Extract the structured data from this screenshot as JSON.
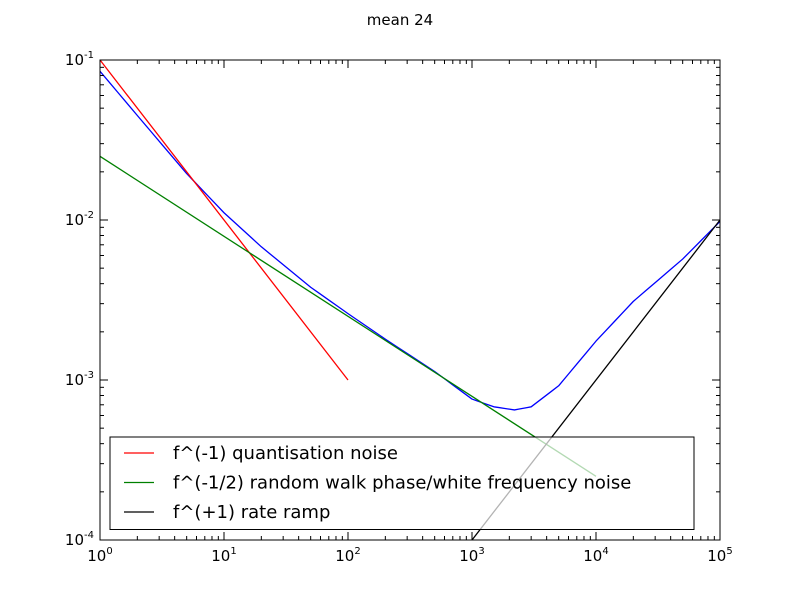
{
  "chart_data": {
    "type": "line",
    "title": "mean 24",
    "xlabel": "",
    "ylabel": "",
    "xscale": "log",
    "yscale": "log",
    "xlim": [
      1,
      100000
    ],
    "ylim": [
      0.0001,
      0.1
    ],
    "grid": false,
    "legend_position": "lower-left",
    "x_tick_labels": [
      {
        "value": 1,
        "base": "10",
        "exp": "0"
      },
      {
        "value": 10,
        "base": "10",
        "exp": "1"
      },
      {
        "value": 100,
        "base": "10",
        "exp": "2"
      },
      {
        "value": 1000,
        "base": "10",
        "exp": "3"
      },
      {
        "value": 10000,
        "base": "10",
        "exp": "4"
      },
      {
        "value": 100000,
        "base": "10",
        "exp": "5"
      }
    ],
    "y_tick_labels": [
      {
        "value": 0.0001,
        "base": "10",
        "exp": "-4"
      },
      {
        "value": 0.001,
        "base": "10",
        "exp": "-3"
      },
      {
        "value": 0.01,
        "base": "10",
        "exp": "-2"
      },
      {
        "value": 0.1,
        "base": "10",
        "exp": "-1"
      }
    ],
    "series": [
      {
        "label": "",
        "color": "#0000ff",
        "in_legend": false,
        "x": [
          1,
          2,
          5,
          10,
          20,
          50,
          100,
          200,
          500,
          1000,
          1500,
          2200,
          3000,
          5000,
          10000,
          20000,
          50000,
          100000
        ],
        "y": [
          0.085,
          0.045,
          0.0195,
          0.0111,
          0.0068,
          0.0038,
          0.0026,
          0.0018,
          0.00113,
          0.00076,
          0.00068,
          0.00065,
          0.00068,
          0.00092,
          0.00175,
          0.0031,
          0.0057,
          0.0098
        ]
      },
      {
        "label": "f^(-1) quantisation noise",
        "color": "#ff0000",
        "in_legend": true,
        "x": [
          1,
          100
        ],
        "y": [
          0.1,
          0.001
        ]
      },
      {
        "label": "f^(-1/2) random walk phase/white frequency noise",
        "color": "#008000",
        "in_legend": true,
        "x": [
          1,
          10000
        ],
        "y": [
          0.025,
          0.00025
        ]
      },
      {
        "label": "f^(+1) rate ramp",
        "color": "#000000",
        "in_legend": true,
        "x": [
          1000,
          100000
        ],
        "y": [
          0.0001,
          0.01
        ]
      }
    ]
  }
}
